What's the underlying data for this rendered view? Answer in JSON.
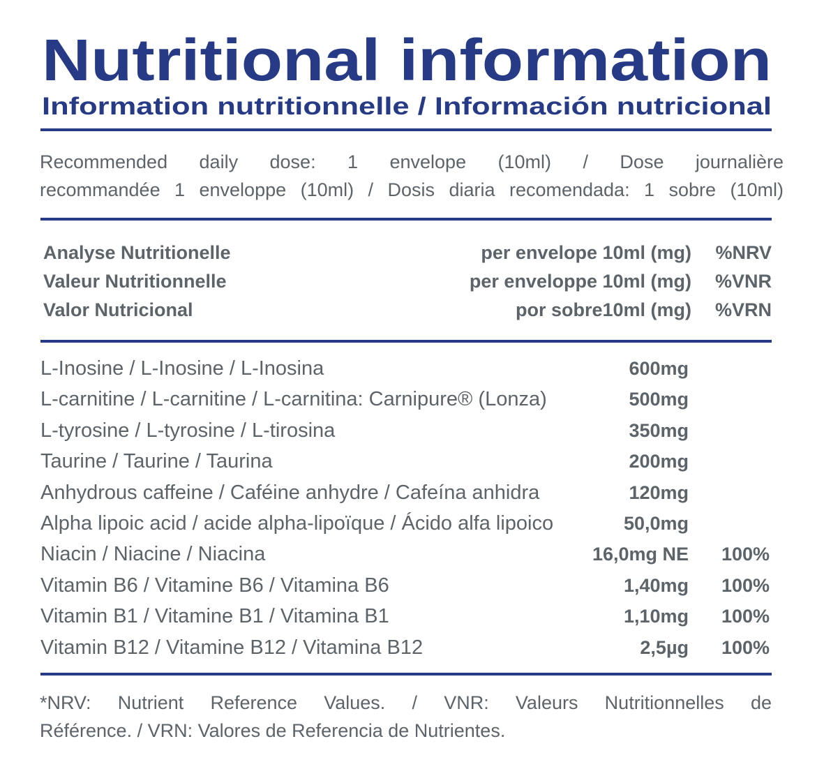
{
  "title": "Nutritional information",
  "subtitle": "Information nutritionnelle / Información nutricional",
  "dose_text": "Recommended daily dose: 1 envelope (10ml) / Dose journalière recommandée 1 enveloppe (10ml) / Dosis diaria recomendada: 1 sobre (10ml)",
  "dose_lines": [
    "Recommended daily dose: 1 envelope (10ml) / Dose journalière",
    "recommandée 1 enveloppe (10ml) / Dosis diaria recomendada: 1 sobre (10ml)"
  ],
  "header": [
    {
      "label": "Analyse Nutritionelle",
      "amount": "per envelope 10ml (mg)",
      "nrv": "%NRV"
    },
    {
      "label": "Valeur Nutritionnelle",
      "amount": "per enveloppe 10ml (mg)",
      "nrv": "%VNR"
    },
    {
      "label": "Valor Nutricional",
      "amount": "por sobre10ml (mg)",
      "nrv": "%VRN"
    }
  ],
  "rows": [
    {
      "name": "L-Inosine / L-Inosine / L-Inosina",
      "amount": "600mg",
      "nrv": ""
    },
    {
      "name": "L-carnitine / L-carnitine / L-carnitina: Carnipure® (Lonza)",
      "amount": "500mg",
      "nrv": ""
    },
    {
      "name": "L-tyrosine / L-tyrosine / L-tirosina",
      "amount": "350mg",
      "nrv": ""
    },
    {
      "name": "Taurine / Taurine / Taurina",
      "amount": "200mg",
      "nrv": ""
    },
    {
      "name": "Anhydrous caffeine / Caféine anhydre / Cafeína anhidra",
      "amount": "120mg",
      "nrv": ""
    },
    {
      "name": "Alpha lipoic acid / acide alpha-lipoïque / Ácido alfa lipoico",
      "amount": "50,0mg",
      "nrv": ""
    },
    {
      "name": "Niacin / Niacine / Niacina",
      "amount": "16,0mg NE",
      "nrv": "100%"
    },
    {
      "name": "Vitamin B6 / Vitamine B6 / Vitamina B6",
      "amount": "1,40mg",
      "nrv": "100%"
    },
    {
      "name": "Vitamin B1 / Vitamine B1 / Vitamina B1",
      "amount": "1,10mg",
      "nrv": "100%"
    },
    {
      "name": "Vitamin B12 / Vitamine B12 / Vitamina B12",
      "amount": "2,5µg",
      "nrv": "100%"
    }
  ],
  "footnote_lines": [
    "*NRV: Nutrient Reference Values. / VNR: Valeurs Nutritionnelles de",
    "Référence. / VRN: Valores de Referencia de Nutrientes."
  ],
  "colors": {
    "accent": "#263a85",
    "text": "#5d6469"
  }
}
